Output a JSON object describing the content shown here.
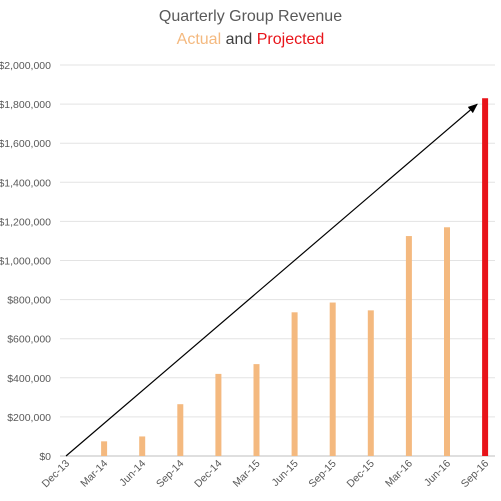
{
  "chart_data": {
    "type": "bar",
    "title": "Quarterly Group Revenue",
    "subtitle": {
      "actual": "Actual",
      "and": "and",
      "projected": "Projected"
    },
    "categories": [
      "Dec-13",
      "Mar-14",
      "Jun-14",
      "Sep-14",
      "Dec-14",
      "Mar-15",
      "Jun-15",
      "Sep-15",
      "Dec-15",
      "Mar-16",
      "Jun-16",
      "Sep-16"
    ],
    "series": [
      {
        "name": "Actual",
        "color": "#f4b97f",
        "values": [
          0,
          75000,
          100000,
          265000,
          420000,
          470000,
          735000,
          785000,
          745000,
          1125000,
          1170000,
          null
        ]
      },
      {
        "name": "Projected",
        "color": "#e8141a",
        "values": [
          null,
          null,
          null,
          null,
          null,
          null,
          null,
          null,
          null,
          null,
          null,
          1830000
        ]
      }
    ],
    "trend_arrow": {
      "from": [
        "Dec-13",
        0
      ],
      "to": [
        "Sep-16",
        1830000
      ]
    },
    "ylim": [
      0,
      2000000
    ],
    "yticks": [
      0,
      200000,
      400000,
      600000,
      800000,
      1000000,
      1200000,
      1400000,
      1600000,
      1800000,
      2000000
    ],
    "ytick_labels": [
      "$0",
      "$200,000",
      "$400,000",
      "$600,000",
      "$800,000",
      "$1,000,000",
      "$1,200,000",
      "$1,400,000",
      "$1,600,000",
      "$1,800,000",
      "$2,000,000"
    ],
    "grid": true,
    "legend": "none",
    "xlabel": "",
    "ylabel": ""
  }
}
